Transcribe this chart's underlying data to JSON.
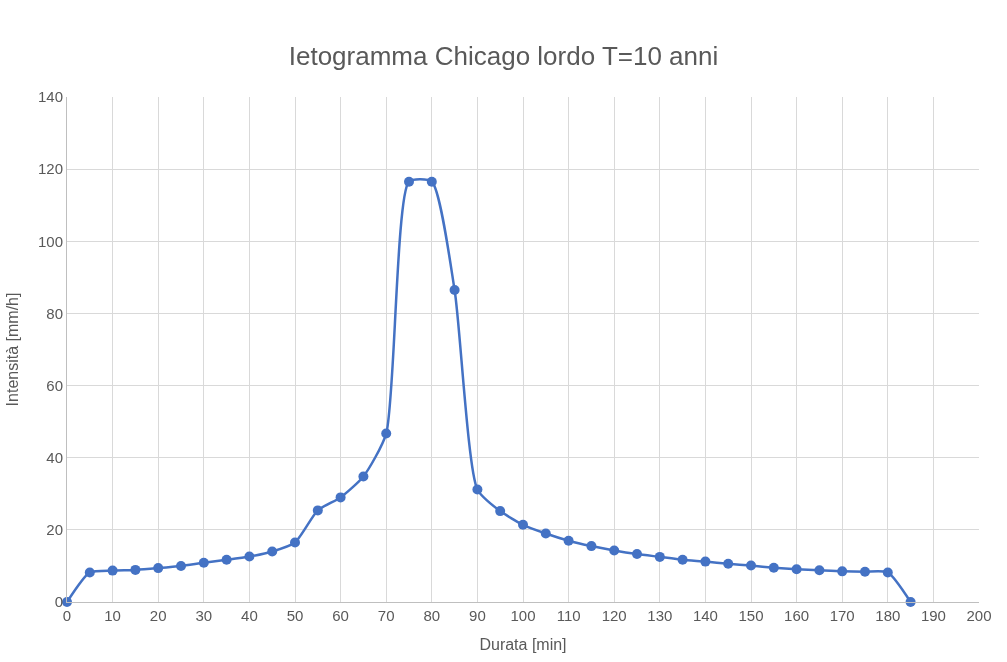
{
  "chart_data": {
    "type": "line",
    "title": "Ietogramma Chicago lordo T=10 anni",
    "xlabel": "Durata [min]",
    "ylabel": "Intensità [mm/h]",
    "x": [
      0,
      5,
      10,
      15,
      20,
      25,
      30,
      35,
      40,
      45,
      50,
      55,
      60,
      65,
      70,
      75,
      80,
      85,
      90,
      95,
      100,
      105,
      110,
      115,
      120,
      125,
      130,
      135,
      140,
      145,
      150,
      155,
      160,
      165,
      170,
      175,
      180,
      185
    ],
    "series": [
      {
        "color": "#4472c4",
        "values": [
          0,
          8.2,
          8.7,
          8.9,
          9.4,
          10.0,
          10.9,
          11.7,
          12.6,
          14.0,
          16.5,
          25.4,
          29.0,
          34.8,
          46.7,
          116.5,
          116.5,
          86.5,
          31.2,
          25.2,
          21.4,
          19.0,
          17.0,
          15.5,
          14.3,
          13.3,
          12.5,
          11.7,
          11.2,
          10.6,
          10.1,
          9.5,
          9.1,
          8.8,
          8.5,
          8.4,
          8.2,
          0
        ]
      }
    ],
    "xlim": [
      0,
      200
    ],
    "xticks": [
      0,
      10,
      20,
      30,
      40,
      50,
      60,
      70,
      80,
      90,
      100,
      110,
      120,
      130,
      140,
      150,
      160,
      170,
      180,
      190,
      200
    ],
    "ylim": [
      0,
      140
    ],
    "yticks": [
      0,
      20,
      40,
      60,
      80,
      100,
      120,
      140
    ],
    "grid": true,
    "marker": "circle",
    "line_style": "solid"
  }
}
